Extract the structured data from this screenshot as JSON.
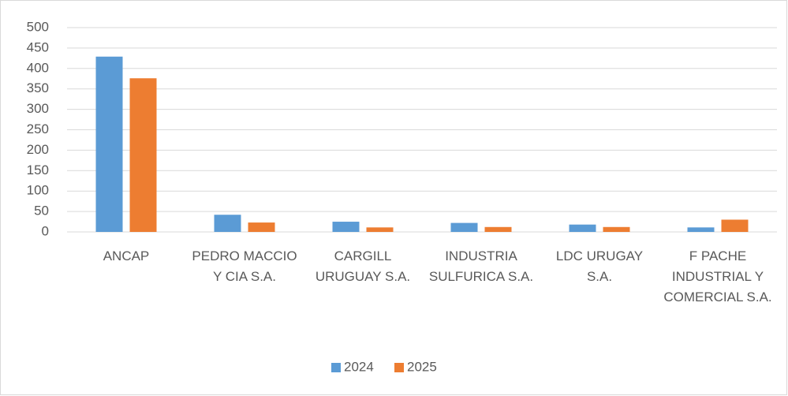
{
  "chart_data": {
    "type": "bar",
    "categories": [
      "ANCAP",
      "PEDRO MACCIO Y CIA S.A.",
      "CARGILL URUGUAY S.A.",
      "INDUSTRIA SULFURICA S.A.",
      "LDC URUGAY S.A.",
      "F PACHE INDUSTRIAL Y COMERCIAL S.A."
    ],
    "series": [
      {
        "name": "2024",
        "color": "#5b9bd5",
        "values": [
          429,
          42,
          25,
          22,
          18,
          11
        ]
      },
      {
        "name": "2025",
        "color": "#ed7d31",
        "values": [
          376,
          23,
          11,
          12,
          12,
          30
        ]
      }
    ],
    "ylim": [
      0,
      500
    ],
    "yticks": [
      0,
      50,
      100,
      150,
      200,
      250,
      300,
      350,
      400,
      450,
      500
    ],
    "grid": true,
    "legend": "bottom"
  }
}
